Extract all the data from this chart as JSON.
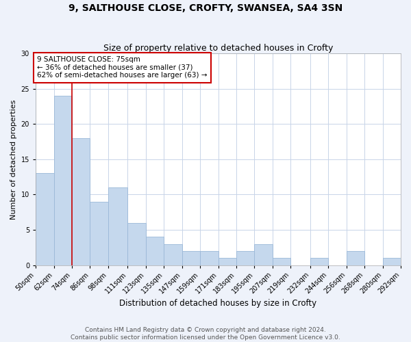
{
  "title": "9, SALTHOUSE CLOSE, CROFTY, SWANSEA, SA4 3SN",
  "subtitle": "Size of property relative to detached houses in Crofty",
  "xlabel": "Distribution of detached houses by size in Crofty",
  "ylabel": "Number of detached properties",
  "bin_edges": [
    50,
    62,
    74,
    86,
    98,
    111,
    123,
    135,
    147,
    159,
    171,
    183,
    195,
    207,
    219,
    232,
    244,
    256,
    268,
    280,
    292
  ],
  "counts": [
    13,
    24,
    18,
    9,
    11,
    6,
    4,
    3,
    2,
    2,
    1,
    2,
    3,
    1,
    0,
    1,
    0,
    2,
    0,
    1
  ],
  "bar_color": "#c5d8ed",
  "bar_edge_color": "#9ab8d8",
  "property_line_x": 74,
  "property_line_color": "#cc0000",
  "annotation_text": "9 SALTHOUSE CLOSE: 75sqm\n← 36% of detached houses are smaller (37)\n62% of semi-detached houses are larger (63) →",
  "annotation_box_edge_color": "#cc0000",
  "ylim": [
    0,
    30
  ],
  "yticks": [
    0,
    5,
    10,
    15,
    20,
    25,
    30
  ],
  "xlim": [
    50,
    292
  ],
  "tick_labels": [
    "50sqm",
    "62sqm",
    "74sqm",
    "86sqm",
    "98sqm",
    "111sqm",
    "123sqm",
    "135sqm",
    "147sqm",
    "159sqm",
    "171sqm",
    "183sqm",
    "195sqm",
    "207sqm",
    "219sqm",
    "232sqm",
    "244sqm",
    "256sqm",
    "268sqm",
    "280sqm",
    "292sqm"
  ],
  "footer_line1": "Contains HM Land Registry data © Crown copyright and database right 2024.",
  "footer_line2": "Contains public sector information licensed under the Open Government Licence v3.0.",
  "bg_color": "#eef2fa",
  "plot_bg_color": "#ffffff",
  "grid_color": "#c8d4e8",
  "title_fontsize": 10,
  "subtitle_fontsize": 9,
  "xlabel_fontsize": 8.5,
  "ylabel_fontsize": 8,
  "tick_fontsize": 7,
  "footer_fontsize": 6.5,
  "annotation_fontsize": 7.5
}
